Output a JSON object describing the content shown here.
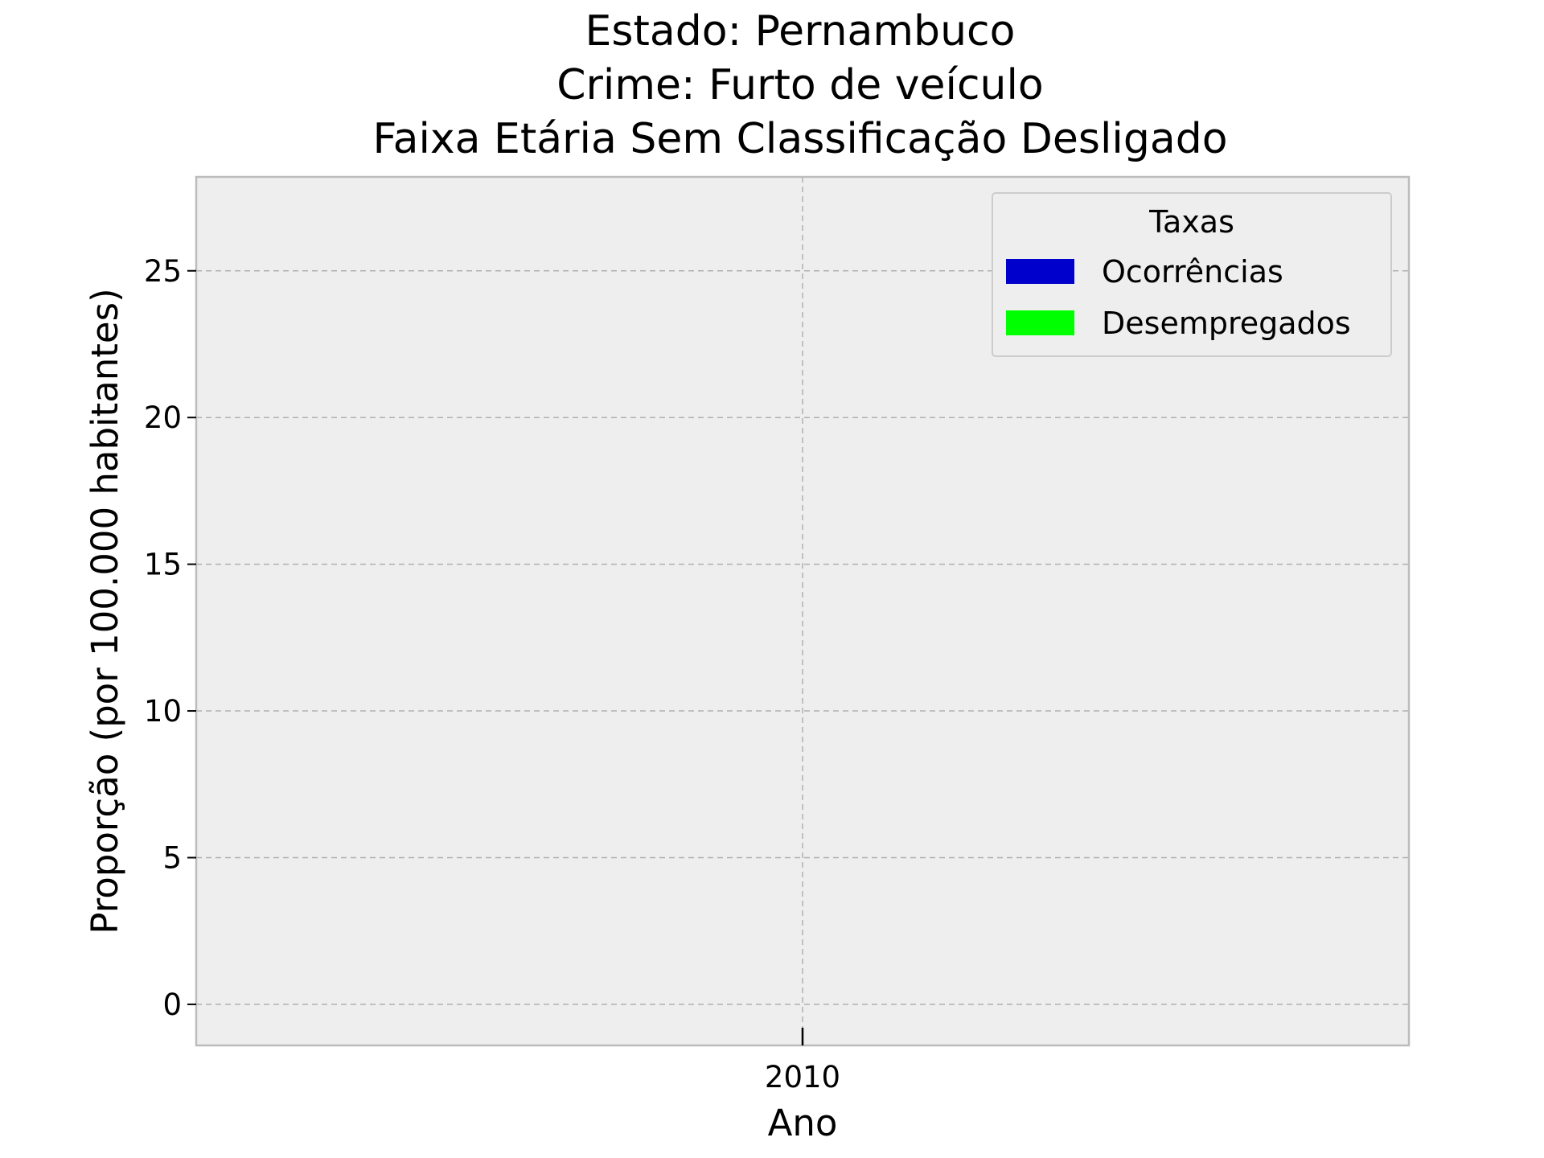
{
  "chart_data": {
    "type": "bar",
    "title": [
      "Estado: Pernambuco",
      "Crime: Furto de veículo",
      "Faixa Etária Sem Classificação   Desligado"
    ],
    "xlabel": "Ano",
    "ylabel": "Proporção (por 100.000 habitantes)",
    "categories": [
      "2010"
    ],
    "series": [
      {
        "name": "Ocorrências",
        "color": "#0000cc",
        "values": [
          0
        ]
      },
      {
        "name": "Desempregados",
        "color": "#00ff00",
        "values": [
          0
        ]
      }
    ],
    "ylim": [
      -1.4,
      28.2
    ],
    "yticks": [
      0,
      5,
      10,
      15,
      20,
      25
    ],
    "grid": true,
    "legend": {
      "title": "Taxas",
      "position": "top-right"
    },
    "colors": {
      "background": "#eeeeee",
      "spine": "#bcbcbc",
      "grid": "#b0b0b0"
    }
  }
}
